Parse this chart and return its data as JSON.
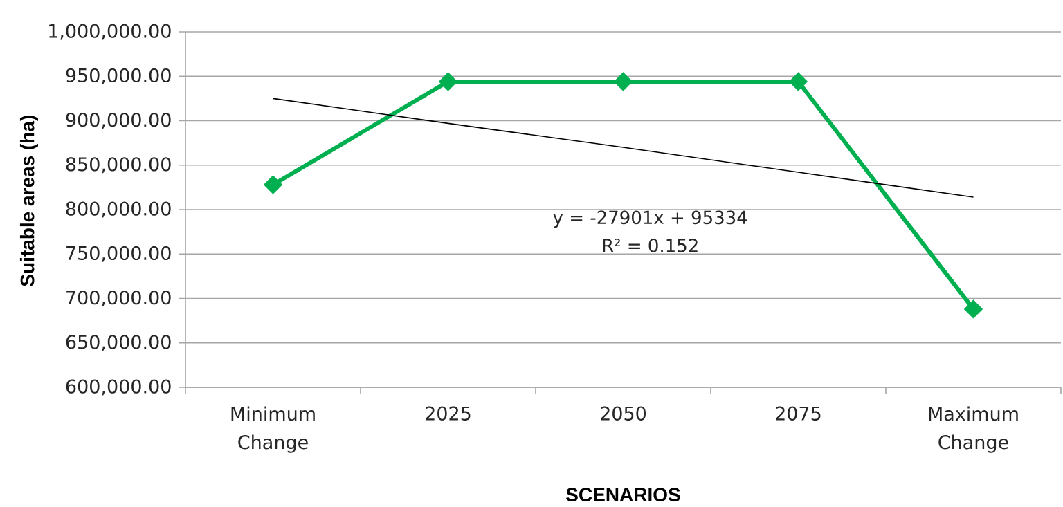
{
  "chart_data": {
    "type": "line",
    "xlabel": "SCENARIOS",
    "ylabel": "Suitable areas (ha)",
    "categories": [
      "Minimum Change",
      "2025",
      "2050",
      "2075",
      "Maximum Change"
    ],
    "series": [
      {
        "color": "#00b050",
        "values": [
          828000,
          944000,
          944000,
          944000,
          688000
        ]
      },
      {
        "type": "line",
        "marker": "none",
        "color": "#000000",
        "values": [
          925000,
          897000,
          870000,
          842000,
          814000
        ]
      }
    ],
    "ylim": [
      600000,
      1000000
    ],
    "yticks": [
      {
        "value": 600000,
        "label": "600,000.00"
      },
      {
        "value": 650000,
        "label": "650,000.00"
      },
      {
        "value": 700000,
        "label": "700,000.00"
      },
      {
        "value": 750000,
        "label": "750,000.00"
      },
      {
        "value": 800000,
        "label": "800,000.00"
      },
      {
        "value": 850000,
        "label": "850,000.00"
      },
      {
        "value": 900000,
        "label": "900,000.00"
      },
      {
        "value": 950000,
        "label": "950,000.00"
      },
      {
        "value": 1000000,
        "label": "1,000,000.00"
      }
    ],
    "grid": "y",
    "marker": "diamond",
    "line_style": "solid",
    "annotations": [
      "y = -27901x + 95334",
      "R² = 0.152"
    ]
  }
}
